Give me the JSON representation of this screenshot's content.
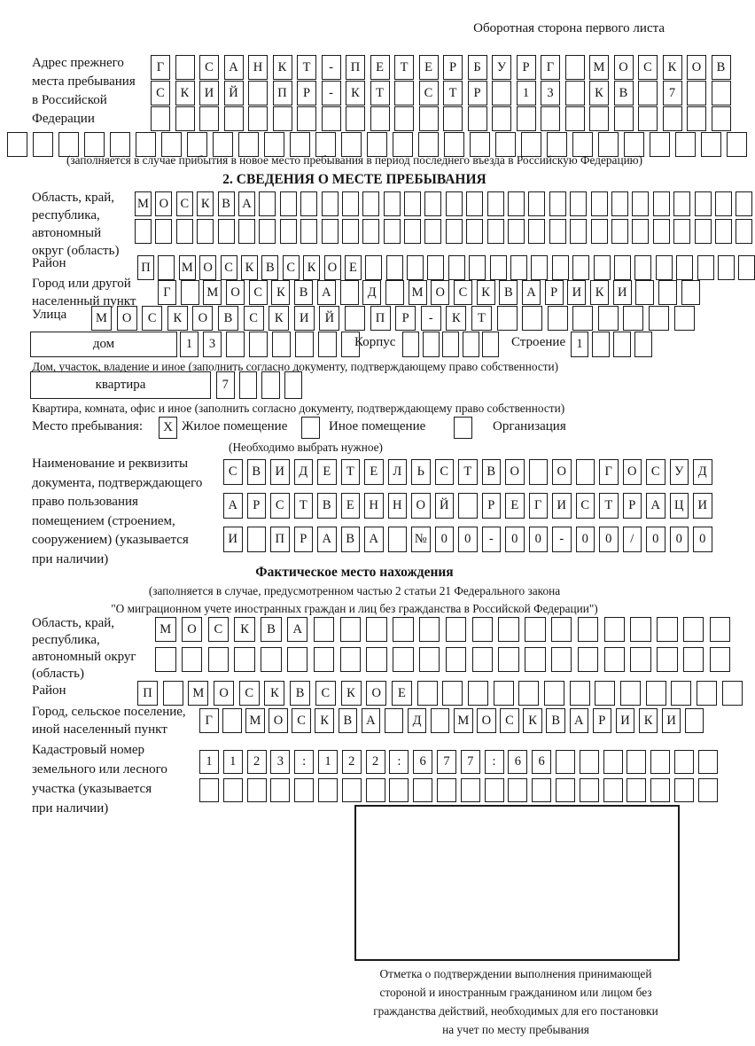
{
  "header": {
    "right": "Оборотная сторона первого листа"
  },
  "prev_address": {
    "label_lines": [
      "Адрес прежнего",
      "места пребывания",
      "в Российской",
      "Федерации"
    ],
    "row1": {
      "chars": "Г САНКТ-ПЕТЕРБУРГ МОСКОВ",
      "count": 24
    },
    "row2": {
      "chars": "СКИЙ ПР-КТ СТР 13 КВ 7",
      "count": 24
    },
    "row3": {
      "chars": "",
      "count": 24
    },
    "row4": {
      "chars": "",
      "count": 29
    },
    "note": "(заполняется в случае прибытия в новое место пребывания в период последнего въезда в Российскую Федерацию)"
  },
  "section2": {
    "title": "2. СВЕДЕНИЯ О МЕСТЕ ПРЕБЫВАНИЯ",
    "region": {
      "label_lines": [
        "Область, край,",
        "республика,",
        "автономный",
        "округ (область)"
      ],
      "row1": {
        "chars": "МОСКВА",
        "count": 30
      },
      "row2": {
        "chars": "",
        "count": 30
      }
    },
    "district": {
      "label": "Район",
      "row": {
        "chars": "П МОСКВСКОЕ",
        "count": 30
      }
    },
    "city": {
      "label_lines": [
        "Город или другой",
        "населенный пункт"
      ],
      "row": {
        "chars": "Г МОСКВА Д МОСКВАРИКИ",
        "count": 24
      }
    },
    "street": {
      "label": "Улица",
      "row": {
        "chars": "МОСКОВСКИЙ ПР-КТ",
        "count": 24
      }
    },
    "house": {
      "box_label": "дом",
      "digits": {
        "chars": "13",
        "count": 8
      },
      "korpus_label": "Корпус",
      "korpus": {
        "chars": "",
        "count": 5
      },
      "stroenie_label": "Строение",
      "stroenie": {
        "chars": "1",
        "count": 4
      },
      "note": "Дом, участок, владение и иное (заполнить согласно документу, подтверждающему право собственности)"
    },
    "apartment": {
      "box_label": "квартира",
      "digits": {
        "chars": "7",
        "count": 4
      },
      "note": "Квартира, комната, офис и иное (заполнить согласно документу, подтверждающему право собственности)"
    },
    "stay_type": {
      "label": "Место пребывания:",
      "checkbox1": "X",
      "option1": "Жилое помещение",
      "checkbox2": "",
      "option2": "Иное помещение",
      "checkbox3": "",
      "option3": "Организация",
      "note": "(Необходимо выбрать нужное)"
    },
    "usage_doc": {
      "label_lines": [
        "Наименование и реквизиты",
        "документа, подтверждающего",
        "право пользования",
        "помещением (строением,",
        "сооружением) (указывается",
        "при наличии)"
      ],
      "row1": {
        "chars": "СВИДЕТЕЛЬСТВО О ГОСУД",
        "count": 21
      },
      "row2": {
        "chars": "АРСТВЕННОЙ РЕГИСТРАЦИ",
        "count": 21
      },
      "row3": {
        "chars": "И ПРАВА №00-00-00/000",
        "count": 21
      }
    }
  },
  "actual_location": {
    "title": "Фактическое место нахождения",
    "note_line1": "(заполняется в случае, предусмотренном частью 2 статьи 21 Федерального закона",
    "note_line2": "\"О миграционном учете иностранных граждан и лиц без гражданства в Российской Федерации\")",
    "region": {
      "label_lines": [
        "Область, край,",
        "республика,",
        "автономный округ",
        "(область)"
      ],
      "row1": {
        "chars": "МОСКВА",
        "count": 22
      },
      "row2": {
        "chars": "",
        "count": 22
      }
    },
    "district": {
      "label": "Район",
      "row": {
        "chars": "П МОСКВСКОЕ",
        "count": 24
      }
    },
    "city": {
      "label_lines": [
        "Город, сельское поселение,",
        "иной населенный пункт"
      ],
      "row": {
        "chars": "Г МОСКВА Д МОСКВАРИКИ",
        "count": 22
      }
    },
    "cadastral": {
      "label_lines": [
        "Кадастровый номер",
        "земельного или лесного",
        "участка (указывается",
        "при наличии)"
      ],
      "row1": {
        "chars": "1123:122:677:66",
        "count": 22
      },
      "row2": {
        "chars": "",
        "count": 22
      }
    },
    "stamp_note_lines": [
      "Отметка о подтверждении выполнения принимающей",
      "стороной и иностранным гражданином или лицом без",
      "гражданства действий, необходимых для его постановки",
      "на учет по месту пребывания"
    ]
  }
}
